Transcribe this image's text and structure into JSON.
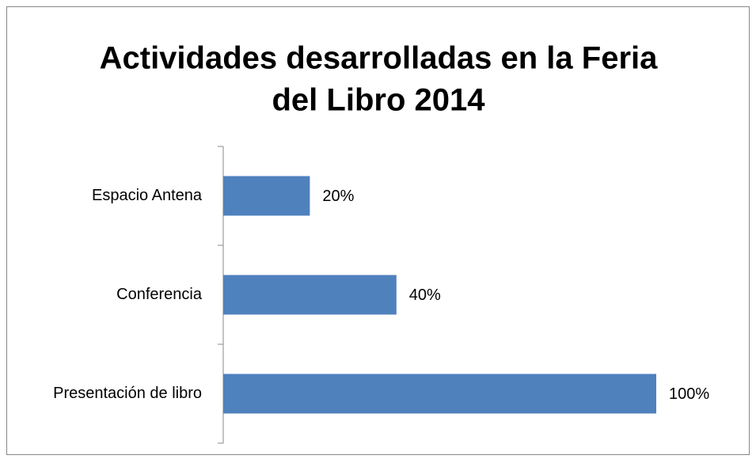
{
  "chart_data": {
    "type": "bar",
    "orientation": "horizontal",
    "title": [
      "Actividades desarrolladas en la Feria",
      "del Libro 2014"
    ],
    "categories": [
      "Espacio Antena",
      "Conferencia",
      "Presentación de libro"
    ],
    "values": [
      20,
      40,
      100
    ],
    "value_labels": [
      "20%",
      "40%",
      "100%"
    ],
    "color": "#4f81bd"
  }
}
